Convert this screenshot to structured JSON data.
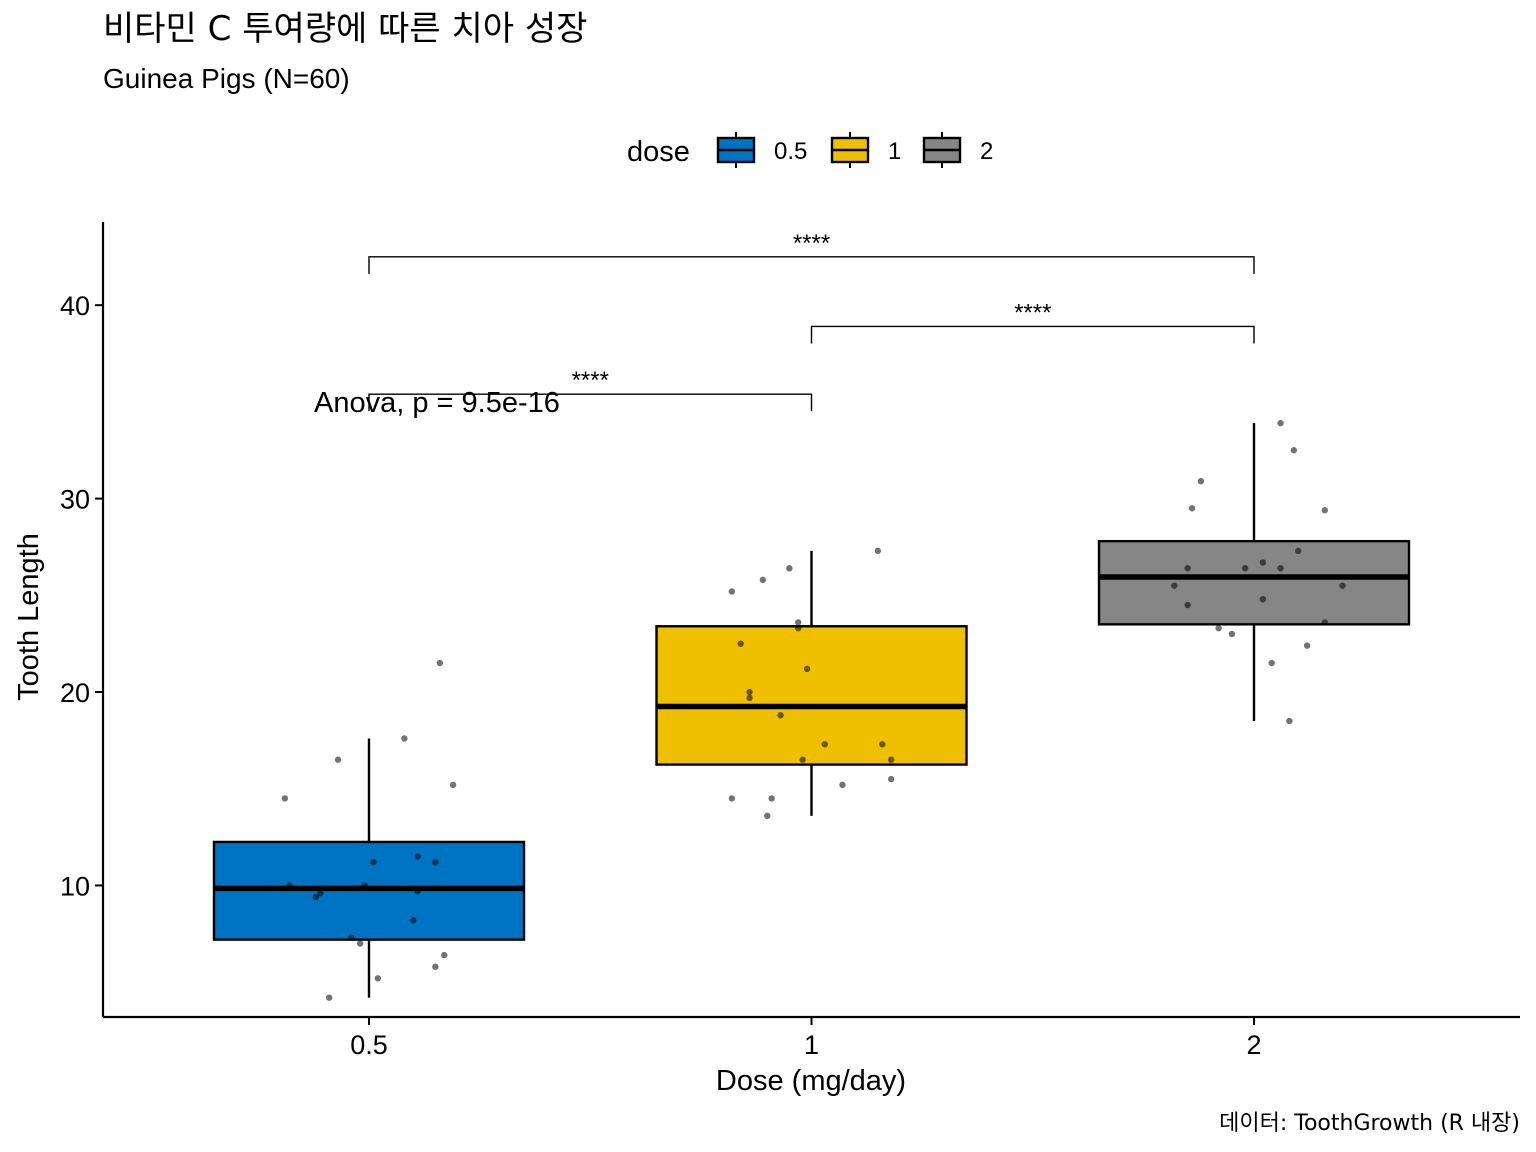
{
  "chart_data": {
    "type": "box",
    "title": "비타민 C 투여량에 따른 치아 성장",
    "subtitle": "Guinea Pigs (N=60)",
    "xlabel": "Dose (mg/day)",
    "ylabel": "Tooth Length",
    "caption": "데이터: ToothGrowth (R 내장)",
    "ylim": [
      3.2,
      44.3
    ],
    "y_ticks": [
      "10",
      "20",
      "30",
      "40"
    ],
    "y_tick_values": [
      10,
      20,
      30,
      40
    ],
    "grid": false,
    "legend": {
      "title": "dose",
      "position": "top",
      "entries": [
        "0.5",
        "1",
        "2"
      ]
    },
    "categories": [
      "0.5",
      "1",
      "2"
    ],
    "colors": [
      "#0073C2",
      "#EFC000",
      "#868686"
    ],
    "boxes": [
      {
        "name": "0.5",
        "whisker_low": 4.2,
        "q1": 7.2,
        "median": 9.85,
        "q3": 12.25,
        "whisker_high": 17.6
      },
      {
        "name": "1",
        "whisker_low": 13.6,
        "q1": 16.25,
        "median": 19.25,
        "q3": 23.4,
        "whisker_high": 27.3
      },
      {
        "name": "2",
        "whisker_low": 18.5,
        "q1": 23.5,
        "median": 25.95,
        "q3": 27.8,
        "whisker_high": 33.9
      }
    ],
    "points": [
      [
        [
          -0.19,
          14.5
        ],
        [
          -0.07,
          16.5
        ],
        [
          0.08,
          17.6
        ],
        [
          0.16,
          21.5
        ],
        [
          0.19,
          15.2
        ],
        [
          -0.18,
          10.0
        ],
        [
          -0.12,
          9.4
        ],
        [
          -0.01,
          10.0
        ],
        [
          0.01,
          11.2
        ],
        [
          0.11,
          11.5
        ],
        [
          0.15,
          11.2
        ],
        [
          0.11,
          9.7
        ],
        [
          0.1,
          8.2
        ],
        [
          -0.04,
          7.3
        ],
        [
          -0.02,
          7.0
        ],
        [
          0.17,
          6.4
        ],
        [
          0.15,
          5.8
        ],
        [
          0.02,
          5.2
        ],
        [
          -0.09,
          4.2
        ],
        [
          -0.11,
          9.6
        ]
      ],
      [
        [
          -0.18,
          25.2
        ],
        [
          -0.11,
          25.8
        ],
        [
          -0.05,
          26.4
        ],
        [
          0.15,
          27.3
        ],
        [
          -0.16,
          22.5
        ],
        [
          -0.03,
          23.6
        ],
        [
          -0.03,
          23.3
        ],
        [
          -0.01,
          21.2
        ],
        [
          -0.14,
          20.0
        ],
        [
          -0.14,
          19.7
        ],
        [
          -0.07,
          18.8
        ],
        [
          0.03,
          17.3
        ],
        [
          0.16,
          17.3
        ],
        [
          -0.02,
          16.5
        ],
        [
          0.18,
          16.5
        ],
        [
          0.18,
          15.5
        ],
        [
          0.07,
          15.2
        ],
        [
          -0.18,
          14.5
        ],
        [
          -0.09,
          14.5
        ],
        [
          -0.1,
          13.6
        ]
      ],
      [
        [
          0.06,
          33.9
        ],
        [
          0.09,
          32.5
        ],
        [
          -0.12,
          30.9
        ],
        [
          -0.14,
          29.5
        ],
        [
          0.16,
          29.4
        ],
        [
          0.1,
          27.3
        ],
        [
          0.02,
          26.7
        ],
        [
          -0.02,
          26.4
        ],
        [
          0.06,
          26.4
        ],
        [
          -0.15,
          26.4
        ],
        [
          -0.18,
          25.5
        ],
        [
          0.2,
          25.5
        ],
        [
          0.02,
          24.8
        ],
        [
          -0.15,
          24.5
        ],
        [
          0.16,
          23.6
        ],
        [
          -0.08,
          23.3
        ],
        [
          -0.05,
          23.0
        ],
        [
          0.12,
          22.4
        ],
        [
          0.04,
          21.5
        ],
        [
          0.08,
          18.5
        ]
      ]
    ],
    "comparisons": [
      {
        "from": 0,
        "to": 1,
        "label": "****",
        "y": 35.4
      },
      {
        "from": 1,
        "to": 2,
        "label": "****",
        "y": 38.9
      },
      {
        "from": 0,
        "to": 2,
        "label": "****",
        "y": 42.5
      }
    ],
    "annotation": {
      "text": "Anova, p = 9.5e-16",
      "x": 0.5,
      "y": 35.0
    }
  }
}
